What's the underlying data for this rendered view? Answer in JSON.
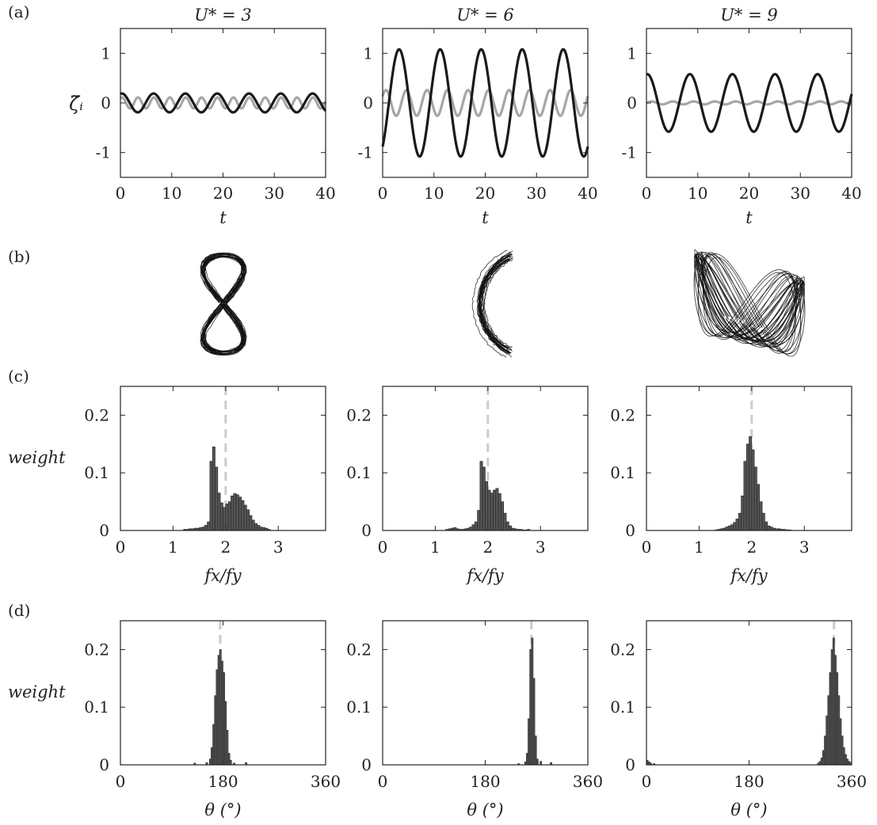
{
  "chart_data": [
    {
      "row_label": "(a)",
      "type": "line",
      "ylabel": "ζ̃ᵢ",
      "xlabel": "t",
      "xlim": [
        0,
        40
      ],
      "ylim": [
        -1.5,
        1.5
      ],
      "xticks": [
        0,
        10,
        20,
        30,
        40
      ],
      "yticks": [
        -1,
        0,
        1
      ],
      "colors": {
        "x_series": "#1a1a1a",
        "y_series": "#a6a6a6"
      },
      "panels": [
        {
          "title": "U* = 3",
          "dark": {
            "amplitude": 0.19,
            "period": 6.2,
            "phase": 1.3
          },
          "light": {
            "amplitude": 0.11,
            "period": 3.1,
            "phase": 0.9
          }
        },
        {
          "title": "U* = 6",
          "dark": {
            "amplitude": 1.08,
            "period": 8.0,
            "phase": -0.95
          },
          "light": {
            "amplitude": 0.26,
            "period": 4.0,
            "phase": 0.55
          }
        },
        {
          "title": "U* = 9",
          "dark": {
            "amplitude": 0.58,
            "period": 8.3,
            "phase": 1.45
          },
          "light": {
            "amplitude": 0.03,
            "period": 4.1,
            "phase": 0.0
          }
        }
      ]
    },
    {
      "row_label": "(b)",
      "type": "trajectory",
      "panels": [
        {
          "shape": "figure-eight",
          "amplitude_x": 0.19,
          "amplitude_y": 0.11
        },
        {
          "shape": "crescent",
          "amplitude_x": 1.08,
          "amplitude_y": 0.26
        },
        {
          "shape": "irregular figure-eight",
          "amplitude_x": 0.58,
          "amplitude_y": 0.03
        }
      ]
    },
    {
      "row_label": "(c)",
      "type": "bar",
      "ylabel": "weight",
      "xlabel": "fx/fy",
      "xlim": [
        0,
        3.9
      ],
      "ylim": [
        0,
        0.25
      ],
      "xticks": [
        0,
        1,
        2,
        3
      ],
      "yticks": [
        0,
        0.1,
        0.2
      ],
      "yticklabels": [
        "0",
        "0.1",
        "0.2"
      ],
      "bin_width": 0.05,
      "reference_line": 2,
      "colors": {
        "bars": "#555555",
        "reference": "#cccccc"
      },
      "panels": [
        {
          "bins": [
            1.2,
            1.25,
            1.3,
            1.35,
            1.4,
            1.45,
            1.5,
            1.55,
            1.6,
            1.65,
            1.7,
            1.75,
            1.8,
            1.85,
            1.9,
            1.95,
            2.0,
            2.05,
            2.1,
            2.15,
            2.2,
            2.25,
            2.3,
            2.35,
            2.4,
            2.45,
            2.5,
            2.55,
            2.6,
            2.65,
            2.7,
            2.75,
            2.8
          ],
          "values": [
            0.002,
            0.002,
            0.003,
            0.003,
            0.004,
            0.004,
            0.005,
            0.006,
            0.009,
            0.015,
            0.12,
            0.145,
            0.11,
            0.065,
            0.048,
            0.04,
            0.046,
            0.05,
            0.06,
            0.064,
            0.062,
            0.058,
            0.052,
            0.044,
            0.036,
            0.026,
            0.018,
            0.012,
            0.009,
            0.006,
            0.005,
            0.004,
            0.002
          ]
        },
        {
          "bins": [
            1.2,
            1.25,
            1.3,
            1.35,
            1.4,
            1.45,
            1.5,
            1.55,
            1.6,
            1.65,
            1.7,
            1.75,
            1.8,
            1.85,
            1.9,
            1.95,
            2.0,
            2.05,
            2.1,
            2.15,
            2.2,
            2.25,
            2.3,
            2.35,
            2.4,
            2.45,
            2.5,
            2.55,
            2.6,
            2.65,
            2.7,
            2.75
          ],
          "values": [
            0.002,
            0.003,
            0.004,
            0.005,
            0.003,
            0.002,
            0.002,
            0.003,
            0.004,
            0.006,
            0.01,
            0.015,
            0.035,
            0.12,
            0.11,
            0.085,
            0.07,
            0.065,
            0.07,
            0.073,
            0.064,
            0.05,
            0.03,
            0.015,
            0.008,
            0.004,
            0.003,
            0.002,
            0.002,
            0.001,
            0.001,
            0.002
          ]
        },
        {
          "bins": [
            1.3,
            1.35,
            1.4,
            1.45,
            1.5,
            1.55,
            1.6,
            1.65,
            1.7,
            1.75,
            1.8,
            1.85,
            1.9,
            1.95,
            2.0,
            2.05,
            2.1,
            2.15,
            2.2,
            2.25,
            2.3,
            2.35,
            2.4,
            2.45,
            2.5,
            2.55,
            2.6,
            2.65,
            2.7
          ],
          "values": [
            0.001,
            0.002,
            0.003,
            0.004,
            0.006,
            0.008,
            0.01,
            0.014,
            0.02,
            0.03,
            0.06,
            0.12,
            0.15,
            0.163,
            0.14,
            0.11,
            0.08,
            0.05,
            0.03,
            0.015,
            0.008,
            0.006,
            0.004,
            0.003,
            0.003,
            0.002,
            0.002,
            0.001,
            0.001
          ]
        }
      ]
    },
    {
      "row_label": "(d)",
      "type": "bar",
      "ylabel": "weight",
      "xlabel": "θ (°)",
      "xlim": [
        0,
        360
      ],
      "ylim": [
        0,
        0.25
      ],
      "xticks": [
        0,
        180,
        360
      ],
      "yticks": [
        0,
        0.1,
        0.2
      ],
      "yticklabels": [
        "0",
        "0.1",
        "0.2"
      ],
      "bin_width": 3,
      "colors": {
        "bars": "#555555",
        "reference": "#cccccc"
      },
      "panels": [
        {
          "reference_line": 175,
          "bins": [
            129,
            150,
            156,
            159,
            162,
            165,
            168,
            171,
            174,
            177,
            180,
            183,
            186,
            189,
            192,
            198,
            219
          ],
          "values": [
            0.003,
            0.004,
            0.01,
            0.03,
            0.07,
            0.12,
            0.165,
            0.19,
            0.2,
            0.18,
            0.16,
            0.11,
            0.06,
            0.02,
            0.008,
            0.003,
            0.004
          ]
        },
        {
          "reference_line": 261,
          "bins": [
            237,
            249,
            252,
            255,
            258,
            261,
            264,
            267,
            270,
            276,
            294
          ],
          "values": [
            0.002,
            0.005,
            0.02,
            0.08,
            0.2,
            0.22,
            0.15,
            0.05,
            0.01,
            0.006,
            0.004
          ]
        },
        {
          "reference_line": 329,
          "bins": [
            0,
            3,
            6,
            12,
            300,
            303,
            306,
            309,
            312,
            315,
            318,
            321,
            324,
            327,
            330,
            333,
            336,
            339,
            342,
            345,
            348,
            351,
            354,
            357
          ],
          "values": [
            0.008,
            0.005,
            0.003,
            0.002,
            0.003,
            0.006,
            0.012,
            0.025,
            0.05,
            0.085,
            0.12,
            0.16,
            0.2,
            0.22,
            0.19,
            0.16,
            0.12,
            0.08,
            0.05,
            0.03,
            0.018,
            0.01,
            0.006,
            0.004
          ]
        }
      ]
    }
  ]
}
